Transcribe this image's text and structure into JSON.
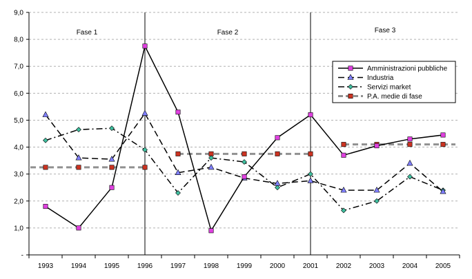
{
  "chart_data": {
    "type": "line",
    "title": "",
    "xlabel": "",
    "ylabel": "",
    "categories": [
      "1993",
      "1994",
      "1995",
      "1996",
      "1997",
      "1998",
      "1999",
      "2000",
      "2001",
      "2002",
      "2003",
      "2004",
      "2005"
    ],
    "ylim": [
      0,
      9
    ],
    "yticks": [
      "-",
      "1,0",
      "2,0",
      "3,0",
      "4,0",
      "5,0",
      "6,0",
      "7,0",
      "8,0",
      "9,0"
    ],
    "grid": "horizontal-dashed",
    "phases": [
      {
        "label": "Fase 1",
        "start": "1993",
        "end": "1996"
      },
      {
        "label": "Fase 2",
        "start": "1996",
        "end": "2001"
      },
      {
        "label": "Fase 3",
        "start": "2001",
        "end": "2005"
      }
    ],
    "legend_position": "right",
    "series": [
      {
        "name": "Amministrazioni pubbliche",
        "color": "#000000",
        "marker_color": "#e040e0",
        "marker": "square",
        "line": "solid",
        "values": [
          1.8,
          1.0,
          2.5,
          7.75,
          5.3,
          0.9,
          2.9,
          4.35,
          5.2,
          3.7,
          4.05,
          4.3,
          4.45
        ]
      },
      {
        "name": "Industria",
        "color": "#000000",
        "marker_color": "#8080ff",
        "marker": "triangle",
        "line": "dash",
        "values": [
          5.2,
          3.6,
          3.55,
          5.25,
          3.05,
          3.25,
          2.85,
          2.65,
          2.75,
          2.4,
          2.4,
          3.4,
          2.35
        ]
      },
      {
        "name": "Servizi market",
        "color": "#000000",
        "marker_color": "#40c0a0",
        "marker": "diamond",
        "line": "dashdot",
        "values": [
          4.25,
          4.65,
          4.7,
          3.9,
          2.3,
          3.6,
          3.45,
          2.5,
          3.0,
          1.65,
          2.0,
          2.9,
          2.4
        ]
      },
      {
        "name": "P.A. medie di fase",
        "color": "#909090",
        "marker_color": "#cc3322",
        "marker": "square",
        "line": "thick-dash",
        "values": [
          3.25,
          3.25,
          3.25,
          3.25,
          3.75,
          3.75,
          3.75,
          3.75,
          3.75,
          4.1,
          4.1,
          4.1,
          4.1
        ]
      }
    ]
  }
}
